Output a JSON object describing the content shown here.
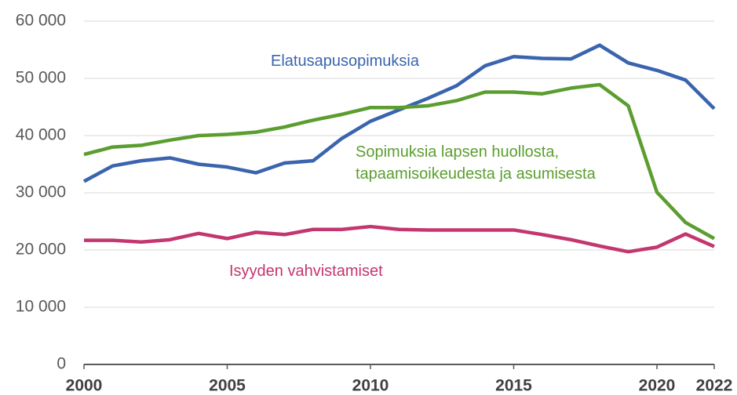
{
  "chart_data": {
    "type": "line",
    "x": [
      2000,
      2001,
      2002,
      2003,
      2004,
      2005,
      2006,
      2007,
      2008,
      2009,
      2010,
      2011,
      2012,
      2013,
      2014,
      2015,
      2016,
      2017,
      2018,
      2019,
      2020,
      2021,
      2022
    ],
    "series": [
      {
        "name": "Elatusapusopimuksia",
        "color": "#3a64ae",
        "values": [
          32000,
          34700,
          35600,
          36100,
          35000,
          34500,
          33500,
          35200,
          35600,
          39500,
          42500,
          44500,
          46500,
          48700,
          52200,
          53800,
          53500,
          53400,
          55800,
          52700,
          51400,
          49700,
          44700
        ]
      },
      {
        "name": "Sopimuksia lapsen huollosta, tapaamisoikeudesta ja asumisesta",
        "color": "#5b9e2f",
        "values": [
          36700,
          38000,
          38300,
          39200,
          40000,
          40200,
          40600,
          41500,
          42700,
          43700,
          44900,
          44900,
          45200,
          46100,
          47600,
          47600,
          47300,
          48300,
          48900,
          45200,
          30100,
          24800,
          22000
        ]
      },
      {
        "name": "Isyyden vahvistamiset",
        "color": "#c3366f",
        "values": [
          21700,
          21700,
          21400,
          21800,
          22900,
          22000,
          23100,
          22700,
          23600,
          23600,
          24100,
          23600,
          23500,
          23500,
          23500,
          23500,
          22700,
          21800,
          20700,
          19700,
          20500,
          22800,
          20600
        ]
      }
    ],
    "xlim": [
      2000,
      2022
    ],
    "xticks": [
      2000,
      2005,
      2010,
      2015,
      2020,
      2022
    ],
    "ylim": [
      0,
      60000
    ],
    "yticks": [
      0,
      {
        "value": 10000,
        "label": "10 000"
      },
      {
        "value": 20000,
        "label": "20 000"
      },
      {
        "value": 30000,
        "label": "30 000"
      },
      {
        "value": 40000,
        "label": "40 000"
      },
      {
        "value": 50000,
        "label": "50 000"
      },
      {
        "value": 60000,
        "label": "60 000"
      }
    ],
    "grid": true
  }
}
